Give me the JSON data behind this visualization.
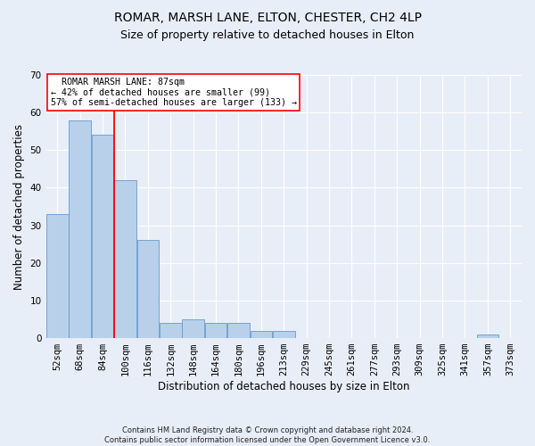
{
  "title1": "ROMAR, MARSH LANE, ELTON, CHESTER, CH2 4LP",
  "title2": "Size of property relative to detached houses in Elton",
  "xlabel": "Distribution of detached houses by size in Elton",
  "ylabel": "Number of detached properties",
  "footnote": "Contains HM Land Registry data © Crown copyright and database right 2024.\nContains public sector information licensed under the Open Government Licence v3.0.",
  "bin_labels": [
    "52sqm",
    "68sqm",
    "84sqm",
    "100sqm",
    "116sqm",
    "132sqm",
    "148sqm",
    "164sqm",
    "180sqm",
    "196sqm",
    "213sqm",
    "229sqm",
    "245sqm",
    "261sqm",
    "277sqm",
    "293sqm",
    "309sqm",
    "325sqm",
    "341sqm",
    "357sqm",
    "373sqm"
  ],
  "bar_values": [
    33,
    58,
    54,
    42,
    26,
    4,
    5,
    4,
    4,
    2,
    2,
    0,
    0,
    0,
    0,
    0,
    0,
    0,
    0,
    1,
    0
  ],
  "bar_color": "#b8d0ea",
  "bar_edge_color": "#6699cc",
  "ylim": [
    0,
    70
  ],
  "yticks": [
    0,
    10,
    20,
    30,
    40,
    50,
    60,
    70
  ],
  "property_label": "ROMAR MARSH LANE: 87sqm",
  "pct_smaller": 42,
  "n_smaller": 99,
  "pct_larger_semi": 57,
  "n_larger_semi": 133,
  "vline_x_index": 2.5,
  "background_color": "#e8eef8",
  "grid_color": "#ffffff",
  "title1_fontsize": 10,
  "title2_fontsize": 9,
  "axis_label_fontsize": 8.5,
  "tick_fontsize": 7.5,
  "footnote_fontsize": 6.0
}
